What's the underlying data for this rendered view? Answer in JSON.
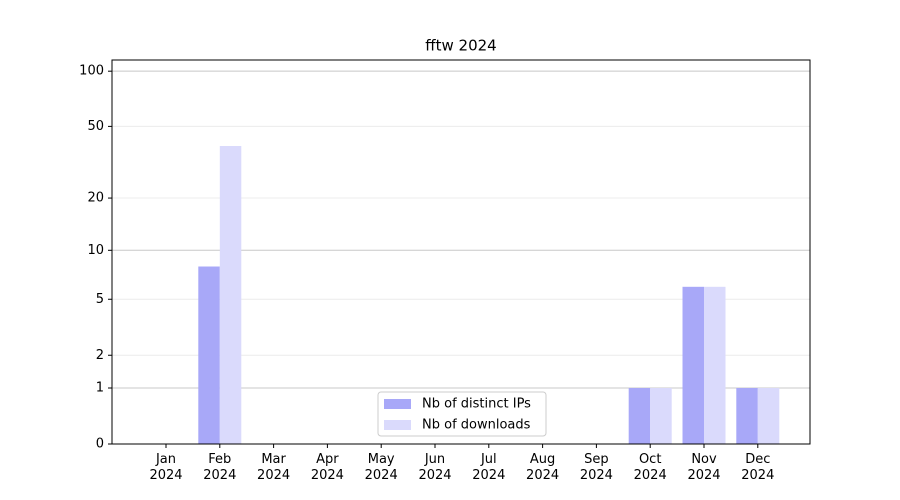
{
  "chart_data": {
    "type": "bar",
    "title": "fftw 2024",
    "y_scale": "log1p",
    "categories": [
      "Jan 2024",
      "Feb 2024",
      "Mar 2024",
      "Apr 2024",
      "May 2024",
      "Jun 2024",
      "Jul 2024",
      "Aug 2024",
      "Sep 2024",
      "Oct 2024",
      "Nov 2024",
      "Dec 2024"
    ],
    "series": [
      {
        "name": "Nb of distinct IPs",
        "color": "#a8a8f8",
        "values": [
          0,
          8,
          0,
          0,
          0,
          0,
          0,
          0,
          0,
          1,
          6,
          1
        ]
      },
      {
        "name": "Nb of downloads",
        "color": "#dadafc",
        "values": [
          0,
          39,
          0,
          0,
          0,
          0,
          0,
          0,
          0,
          1,
          6,
          1
        ]
      }
    ],
    "ylim": [
      0,
      115
    ],
    "yticks": [
      0,
      1,
      2,
      5,
      10,
      20,
      50,
      100
    ],
    "grid": true,
    "legend": "lower center"
  }
}
